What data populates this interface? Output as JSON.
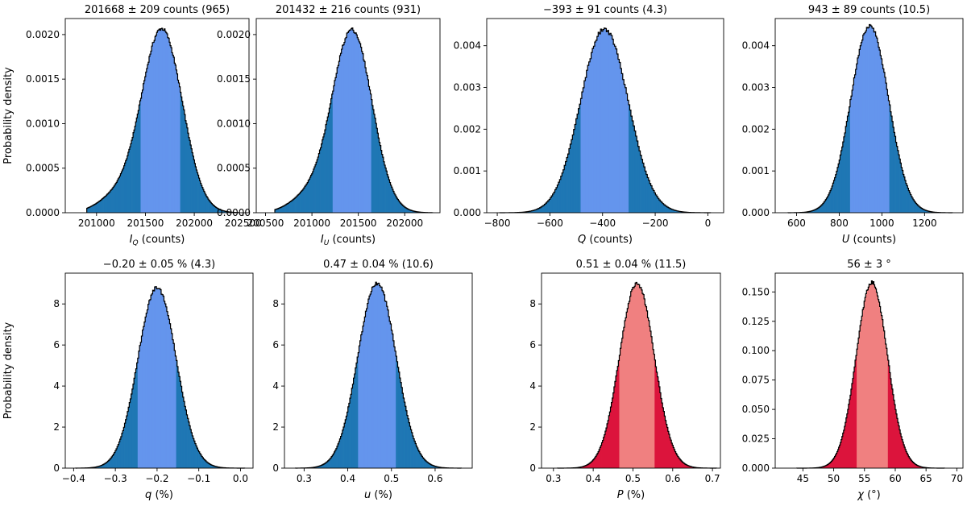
{
  "figure": {
    "ylabel": "Probability density"
  },
  "chart_data": [
    {
      "type": "histogram",
      "title": "201668 ± 209 counts (965)",
      "xlabel_main": "I",
      "xlabel_sub": "Q",
      "xlabel_rest": " (counts)",
      "ylabel": "Probability density",
      "mean": 201668,
      "sigma": 209,
      "xlim": [
        200680,
        202560
      ],
      "ylim": [
        0,
        0.00218
      ],
      "xticks": [
        201000,
        201500,
        202000,
        202500
      ],
      "yticks": [
        0,
        0.0005,
        0.001,
        0.0015,
        0.002
      ],
      "ytick_labels": [
        "0.0000",
        "0.0005",
        "0.0010",
        "0.0015",
        "0.0020"
      ],
      "dist_range": [
        200900,
        202450
      ],
      "shoulder_left": 201200,
      "peak_density": 0.00206,
      "inner_interval": [
        201455,
        201860
      ],
      "outer_color": "#1f77b4",
      "inner_color": "#6495ed"
    },
    {
      "type": "histogram",
      "title": "201432 ± 216 counts (931)",
      "xlabel_main": "I",
      "xlabel_sub": "U",
      "xlabel_rest": " (counts)",
      "ylabel": "",
      "mean": 201432,
      "sigma": 216,
      "xlim": [
        200400,
        202380
      ],
      "ylim": [
        0,
        0.00218
      ],
      "xticks": [
        200500,
        201000,
        201500,
        202000
      ],
      "yticks": [
        0,
        0.0005,
        0.001,
        0.0015,
        0.002
      ],
      "ytick_labels": [
        "0.0000",
        "0.0005",
        "0.0010",
        "0.0015",
        "0.0020"
      ],
      "dist_range": [
        200600,
        202300
      ],
      "shoulder_left": 200950,
      "peak_density": 0.00205,
      "inner_interval": [
        201220,
        201640
      ],
      "outer_color": "#1f77b4",
      "inner_color": "#6495ed"
    },
    {
      "type": "histogram",
      "title": "−393 ± 91 counts (4.3)",
      "xlabel_main": "Q",
      "xlabel_sub": "",
      "xlabel_rest": " (counts)",
      "ylabel": "",
      "mean": -393,
      "sigma": 91,
      "xlim": [
        -840,
        60
      ],
      "ylim": [
        0,
        0.00465
      ],
      "xticks": [
        -800,
        -600,
        -400,
        -200,
        0
      ],
      "yticks": [
        0,
        0.001,
        0.002,
        0.003,
        0.004
      ],
      "ytick_labels": [
        "0.000",
        "0.001",
        "0.002",
        "0.003",
        "0.004"
      ],
      "dist_range": [
        -790,
        10
      ],
      "peak_density": 0.0044,
      "inner_interval": [
        -485,
        -303
      ],
      "outer_color": "#1f77b4",
      "inner_color": "#6495ed"
    },
    {
      "type": "histogram",
      "title": "943 ± 89 counts (10.5)",
      "xlabel_main": "U",
      "xlabel_sub": "",
      "xlabel_rest": " (counts)",
      "ylabel": "",
      "mean": 943,
      "sigma": 89,
      "xlim": [
        500,
        1380
      ],
      "ylim": [
        0,
        0.00465
      ],
      "xticks": [
        600,
        800,
        1000,
        1200
      ],
      "yticks": [
        0,
        0.001,
        0.002,
        0.003,
        0.004
      ],
      "ytick_labels": [
        "0.000",
        "0.001",
        "0.002",
        "0.003",
        "0.004"
      ],
      "dist_range": [
        560,
        1330
      ],
      "peak_density": 0.00448,
      "inner_interval": [
        853,
        1033
      ],
      "outer_color": "#1f77b4",
      "inner_color": "#6495ed"
    },
    {
      "type": "histogram",
      "title": "−0.20 ± 0.05 % (4.3)",
      "xlabel_main": "q",
      "xlabel_sub": "",
      "xlabel_rest": " (%)",
      "ylabel": "Probability density",
      "mean": -0.2,
      "sigma": 0.046,
      "xlim": [
        -0.42,
        0.03
      ],
      "ylim": [
        0,
        9.5
      ],
      "xticks": [
        -0.4,
        -0.3,
        -0.2,
        -0.1,
        0.0
      ],
      "xtick_labels": [
        "−0.4",
        "−0.3",
        "−0.2",
        "−0.1",
        "0.0"
      ],
      "yticks": [
        0,
        2,
        4,
        6,
        8
      ],
      "ytick_labels": [
        "0",
        "2",
        "4",
        "6",
        "8"
      ],
      "dist_range": [
        -0.395,
        0.01
      ],
      "peak_density": 8.8,
      "inner_interval": [
        -0.246,
        -0.154
      ],
      "outer_color": "#1f77b4",
      "inner_color": "#6495ed"
    },
    {
      "type": "histogram",
      "title": "0.47 ± 0.04 % (10.6)",
      "xlabel_main": "u",
      "xlabel_sub": "",
      "xlabel_rest": " (%)",
      "ylabel": "",
      "mean": 0.467,
      "sigma": 0.044,
      "xlim": [
        0.255,
        0.685
      ],
      "ylim": [
        0,
        9.5
      ],
      "xticks": [
        0.3,
        0.4,
        0.5,
        0.6
      ],
      "xtick_labels": [
        "0.3",
        "0.4",
        "0.5",
        "0.6"
      ],
      "yticks": [
        0,
        2,
        4,
        6,
        8
      ],
      "ytick_labels": [
        "0",
        "2",
        "4",
        "6",
        "8"
      ],
      "dist_range": [
        0.28,
        0.66
      ],
      "peak_density": 9.0,
      "inner_interval": [
        0.423,
        0.511
      ],
      "outer_color": "#1f77b4",
      "inner_color": "#6495ed"
    },
    {
      "type": "histogram",
      "title": "0.51 ± 0.04 % (11.5)",
      "xlabel_main": "P",
      "xlabel_sub": "",
      "xlabel_rest": " (%)",
      "ylabel": "",
      "mean": 0.51,
      "sigma": 0.044,
      "xlim": [
        0.27,
        0.72
      ],
      "ylim": [
        0,
        9.5
      ],
      "xticks": [
        0.3,
        0.4,
        0.5,
        0.6,
        0.7
      ],
      "xtick_labels": [
        "0.3",
        "0.4",
        "0.5",
        "0.6",
        "0.7"
      ],
      "yticks": [
        0,
        2,
        4,
        6,
        8
      ],
      "ytick_labels": [
        "0",
        "2",
        "4",
        "6",
        "8"
      ],
      "dist_range": [
        0.31,
        0.71
      ],
      "peak_density": 9.0,
      "inner_interval": [
        0.466,
        0.554
      ],
      "outer_color": "#dc143c",
      "inner_color": "#f08080"
    },
    {
      "type": "histogram",
      "title": "56 ± 3 °",
      "xlabel_main": "χ",
      "xlabel_sub": "",
      "xlabel_rest": " (°)",
      "ylabel": "",
      "mean": 56.2,
      "sigma": 2.55,
      "xlim": [
        40.5,
        71
      ],
      "ylim": [
        0,
        0.166
      ],
      "xticks": [
        45,
        50,
        55,
        60,
        65,
        70
      ],
      "xtick_labels": [
        "45",
        "50",
        "55",
        "60",
        "65",
        "70"
      ],
      "yticks": [
        0,
        0.025,
        0.05,
        0.075,
        0.1,
        0.125,
        0.15
      ],
      "ytick_labels": [
        "0.000",
        "0.025",
        "0.050",
        "0.075",
        "0.100",
        "0.125",
        "0.150"
      ],
      "dist_range": [
        44,
        68
      ],
      "peak_density": 0.158,
      "inner_interval": [
        53.7,
        58.8
      ],
      "outer_color": "#dc143c",
      "inner_color": "#f08080"
    }
  ]
}
